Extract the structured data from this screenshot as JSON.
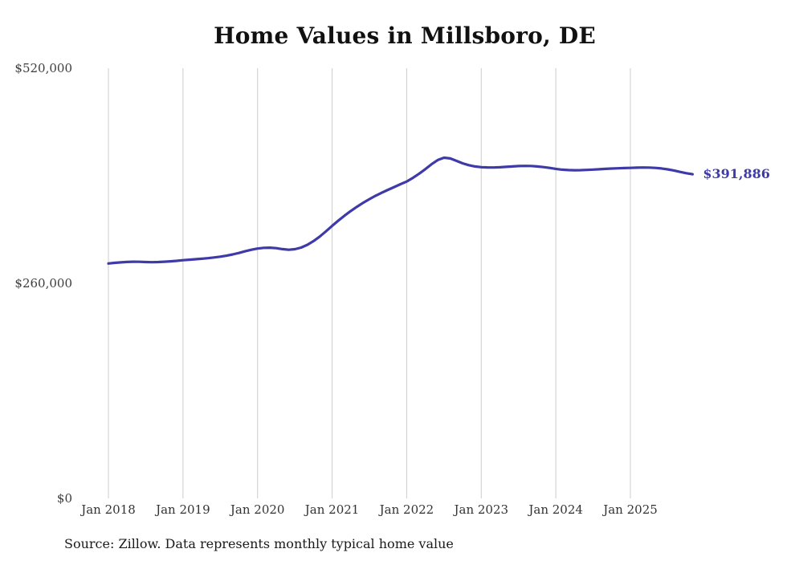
{
  "chart_data": {
    "type": "line",
    "title": "Home Values in Millsboro, DE",
    "source_note": "Source: Zillow. Data represents monthly typical home value",
    "end_label": "$391,886",
    "end_value": 391886,
    "ylim": [
      0,
      520000
    ],
    "grid": "vertical",
    "legend": "none",
    "frequency": "monthly",
    "x_start": "2018-01",
    "x_tick_labels": [
      "Jan 2018",
      "Jan 2019",
      "Jan 2020",
      "Jan 2021",
      "Jan 2022",
      "Jan 2023",
      "Jan 2024",
      "Jan 2025"
    ],
    "x_tick_month_indices": [
      0,
      12,
      24,
      36,
      48,
      60,
      72,
      84
    ],
    "y_ticks": [
      {
        "label": "$520,000",
        "value": 520000
      },
      {
        "label": "$260,000",
        "value": 260000
      },
      {
        "label": "$0",
        "value": 0
      }
    ],
    "colors": {
      "line": "#3e3aa8",
      "grid": "#cccccc",
      "end_label": "#3e3aa8"
    },
    "series": [
      {
        "name": "Typical home value",
        "color": "#3e3aa8",
        "values": [
          284000,
          284700,
          285300,
          285800,
          286100,
          286000,
          285700,
          285500,
          285700,
          286100,
          286600,
          287200,
          287900,
          288500,
          289100,
          289700,
          290400,
          291200,
          292200,
          293400,
          294900,
          296700,
          298700,
          300600,
          302000,
          302900,
          303100,
          302500,
          301300,
          300600,
          301200,
          303200,
          306500,
          311000,
          316500,
          322800,
          329500,
          335800,
          341800,
          347400,
          352600,
          357400,
          361800,
          365800,
          369500,
          373000,
          376400,
          379800,
          383000,
          387500,
          392500,
          398000,
          404000,
          409000,
          411800,
          411000,
          408000,
          405000,
          402800,
          401300,
          400400,
          400100,
          400000,
          400300,
          400800,
          401300,
          401700,
          401900,
          401800,
          401300,
          400500,
          399500,
          398300,
          397400,
          396900,
          396700,
          396800,
          397100,
          397500,
          397900,
          398300,
          398700,
          399000,
          399300,
          399500,
          399800,
          400000,
          399900,
          399500,
          398800,
          397800,
          396400,
          394700,
          393100,
          391886
        ]
      }
    ]
  }
}
